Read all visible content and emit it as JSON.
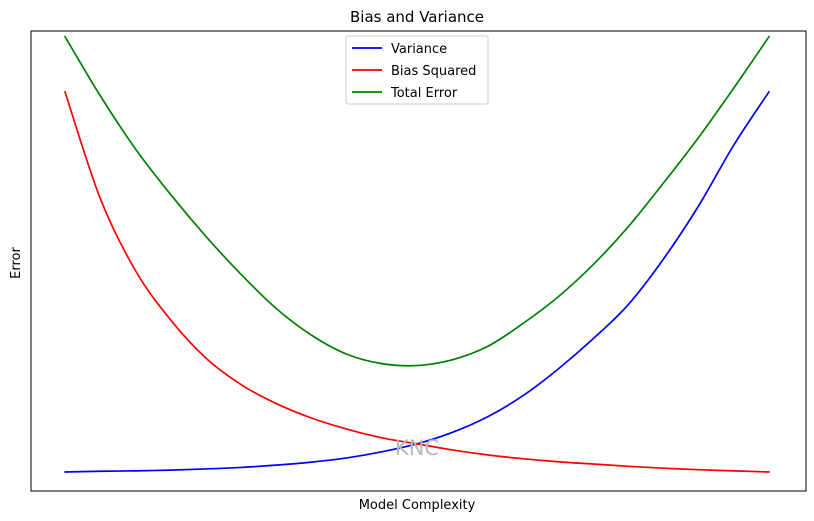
{
  "chart_data": {
    "type": "line",
    "title": "Bias and Variance",
    "xlabel": "Model Complexity",
    "ylabel": "Error",
    "x_ticks_visible": false,
    "y_ticks_visible": false,
    "grid": false,
    "legend_position": "top-center",
    "xlim": [
      0,
      1
    ],
    "ylim": [
      -0.05,
      1.16
    ],
    "x": [
      0,
      0.05,
      0.1,
      0.15,
      0.2,
      0.25,
      0.3,
      0.35,
      0.4,
      0.45,
      0.5,
      0.55,
      0.6,
      0.65,
      0.7,
      0.75,
      0.8,
      0.85,
      0.9,
      0.95,
      1
    ],
    "series": [
      {
        "name": "Variance",
        "color": "#0000ff",
        "values": [
          0,
          0.002,
          0.003,
          0.005,
          0.008,
          0.012,
          0.018,
          0.026,
          0.037,
          0.053,
          0.074,
          0.104,
          0.145,
          0.2,
          0.27,
          0.35,
          0.44,
          0.56,
          0.7,
          0.86,
          1.0
        ]
      },
      {
        "name": "Bias Squared",
        "color": "#ff0000",
        "values": [
          1.0,
          0.72,
          0.53,
          0.4,
          0.3,
          0.23,
          0.18,
          0.142,
          0.113,
          0.09,
          0.074,
          0.058,
          0.045,
          0.035,
          0.027,
          0.021,
          0.015,
          0.01,
          0.006,
          0.003,
          0
        ]
      },
      {
        "name": "Total Error",
        "color": "#008000",
        "values": [
          1.145,
          0.99,
          0.85,
          0.73,
          0.62,
          0.52,
          0.43,
          0.36,
          0.31,
          0.285,
          0.28,
          0.295,
          0.33,
          0.39,
          0.46,
          0.545,
          0.645,
          0.76,
          0.88,
          1.01,
          1.145
        ]
      }
    ],
    "annotations": [
      {
        "text": "KNC",
        "x": 0.5,
        "y": 0.045,
        "color": "#b8b8b8"
      }
    ]
  }
}
